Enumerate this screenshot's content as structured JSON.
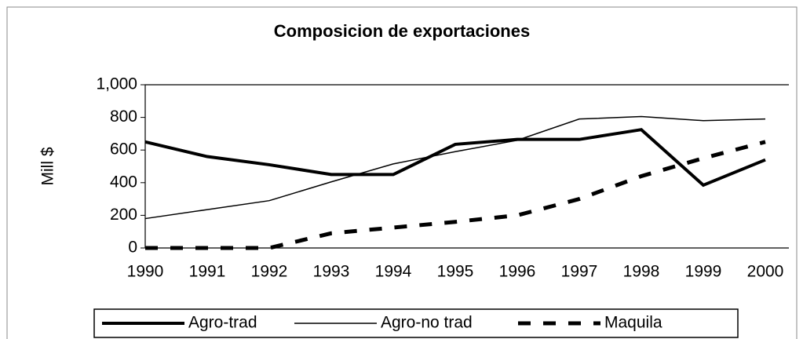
{
  "chart_data": {
    "type": "line",
    "title": "Composicion de exportaciones",
    "y_label": "Mill $",
    "categories": [
      "1990",
      "1991",
      "1992",
      "1993",
      "1994",
      "1995",
      "1996",
      "1997",
      "1998",
      "1999",
      "2000"
    ],
    "series": [
      {
        "name": "Agro-trad",
        "color": "#000000",
        "values": [
          650,
          560,
          510,
          450,
          450,
          635,
          665,
          665,
          725,
          385,
          540
        ]
      },
      {
        "name": "Agro-no trad",
        "color": "#000000",
        "values": [
          180,
          235,
          290,
          405,
          515,
          590,
          660,
          790,
          805,
          780,
          790
        ]
      },
      {
        "name": "Maquila",
        "color": "#000000",
        "values": [
          0,
          0,
          0,
          90,
          125,
          160,
          200,
          300,
          440,
          550,
          650
        ]
      }
    ],
    "ylim": [
      0,
      1000
    ],
    "yticks": [
      0,
      200,
      400,
      600,
      800,
      {
        "value": 1000,
        "label": "1,000"
      }
    ]
  }
}
